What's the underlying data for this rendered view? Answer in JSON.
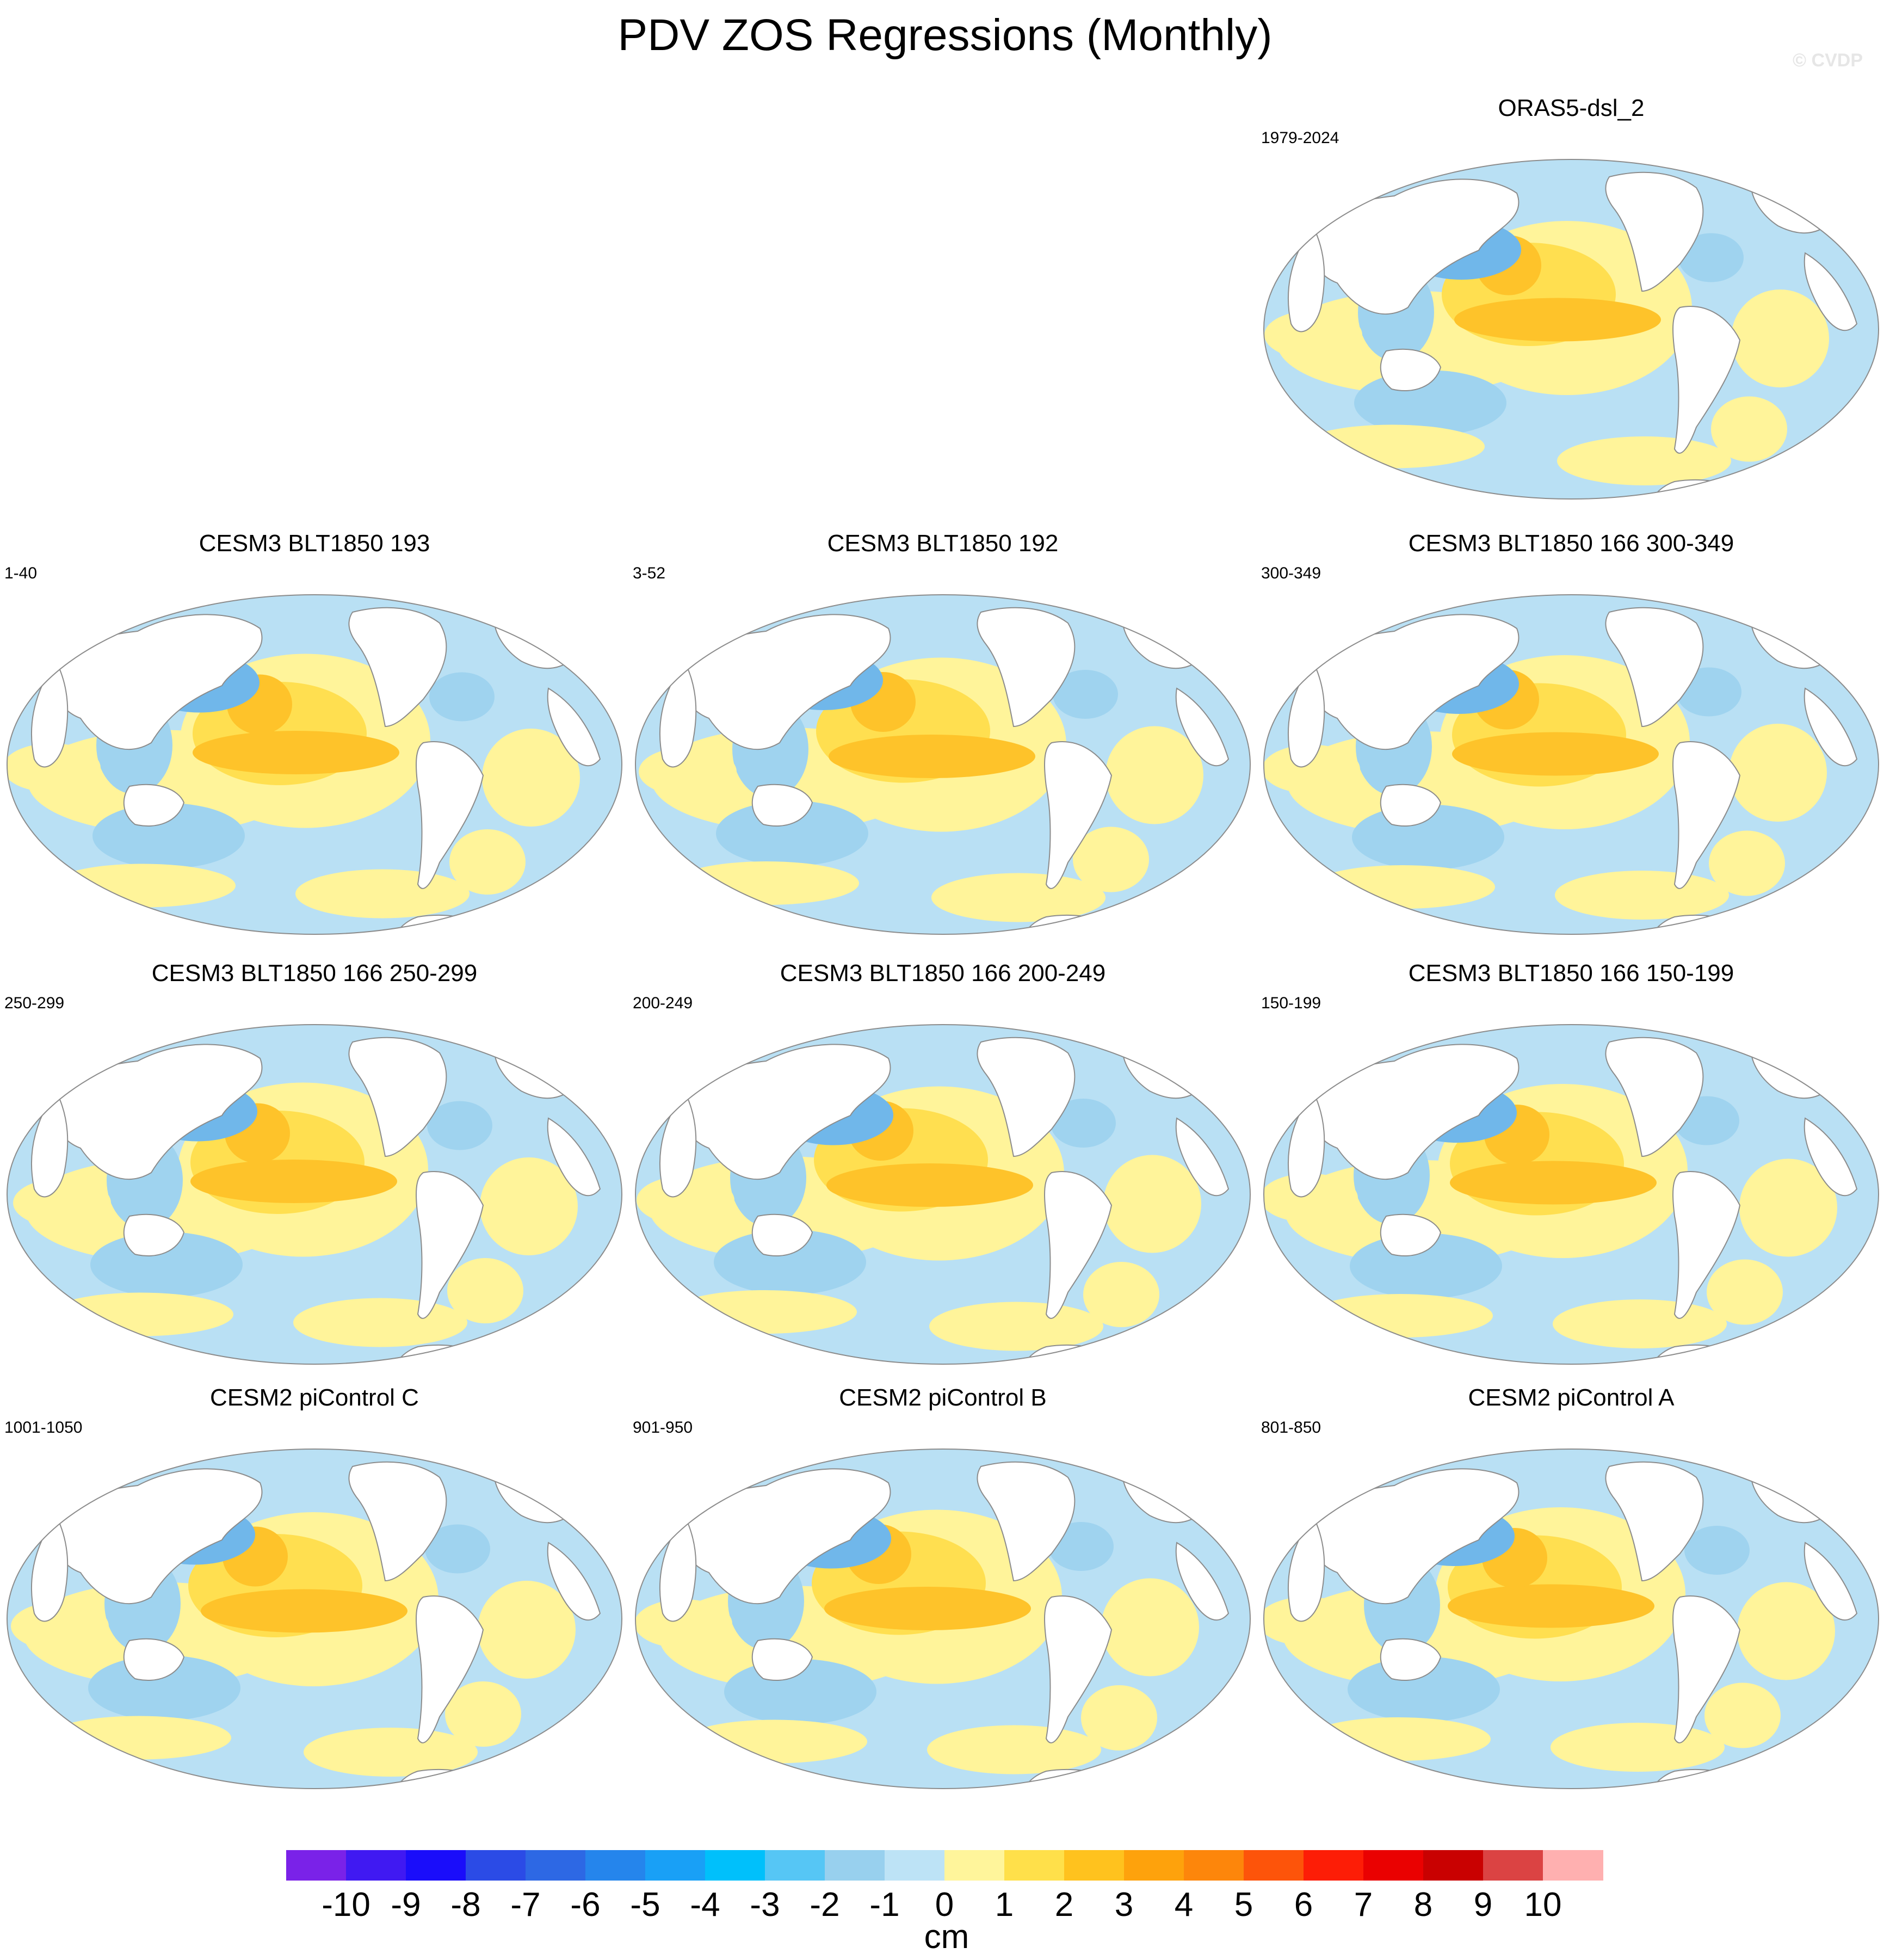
{
  "title": "PDV ZOS Regressions (Monthly)",
  "watermark": "© CVDP",
  "colors": {
    "ocean_base": "#b9e0f4",
    "neg1": "#9fd3ef",
    "neg2": "#70b7ea",
    "neg3": "#3f8fe0",
    "pos1": "#fff49a",
    "pos2": "#ffdf50",
    "pos3": "#fec32a",
    "pos4": "#fca30f",
    "pos5": "#f76b0c",
    "land": "#ffffff",
    "outline": "#8c8c8c"
  },
  "panels": [
    {
      "title": "ORAS5-dsl_2",
      "range": "1979-2024"
    },
    {
      "title": "CESM3 BLT1850 193",
      "range": "1-40"
    },
    {
      "title": "CESM3 BLT1850 192",
      "range": "3-52"
    },
    {
      "title": "CESM3 BLT1850 166 300-349",
      "range": "300-349"
    },
    {
      "title": "CESM3 BLT1850 166 250-299",
      "range": "250-299"
    },
    {
      "title": "CESM3 BLT1850 166 200-249",
      "range": "200-249"
    },
    {
      "title": "CESM3 BLT1850 166 150-199",
      "range": "150-199"
    },
    {
      "title": "CESM2 piControl C",
      "range": "1001-1050"
    },
    {
      "title": "CESM2 piControl B",
      "range": "901-950"
    },
    {
      "title": "CESM2 piControl A",
      "range": "801-850"
    }
  ],
  "colorbar": {
    "labels": [
      "-10",
      "-9",
      "-8",
      "-7",
      "-6",
      "-5",
      "-4",
      "-3",
      "-2",
      "-1",
      "0",
      "1",
      "2",
      "3",
      "4",
      "5",
      "6",
      "7",
      "8",
      "9",
      "10"
    ],
    "colors": [
      "#7a22e8",
      "#4019f2",
      "#1a0dfa",
      "#2b4be6",
      "#2d68e4",
      "#2585ec",
      "#19a0f6",
      "#00c0fb",
      "#56c6f5",
      "#98d0ee",
      "#bde3f6",
      "#fff59b",
      "#ffe04a",
      "#ffc21e",
      "#fea20c",
      "#fd860b",
      "#fd540a",
      "#fd1d06",
      "#ea0101",
      "#c90101",
      "#db4343",
      "#ffb0b0"
    ],
    "units": "cm"
  }
}
